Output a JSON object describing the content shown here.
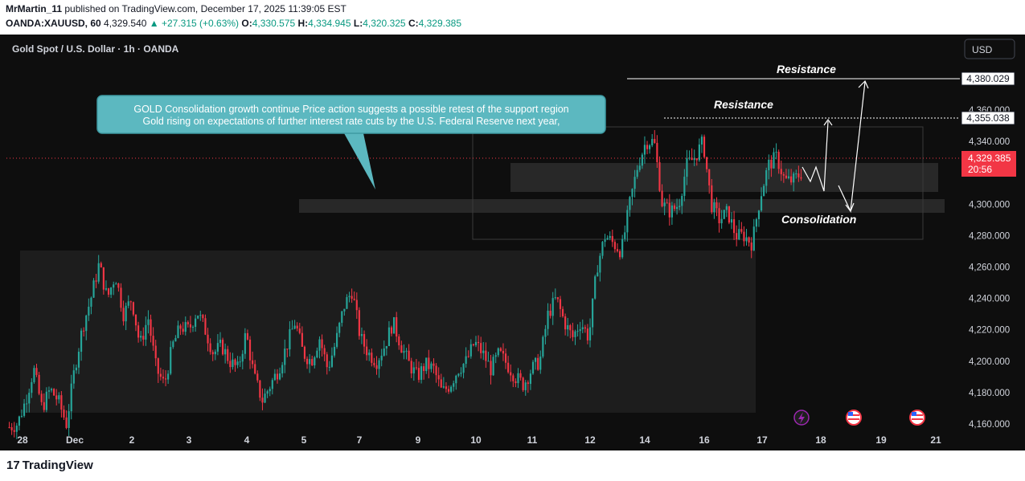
{
  "header": {
    "author": "MrMartin_11",
    "published": " published on TradingView.com, December 17, 2025 11:39:05 EST",
    "symbol": "OANDA:XAUUSD, 60",
    "last": "4,329.540",
    "change": "▲ +27.315 (+0.63%)",
    "o_label": "O:",
    "o_value": "4,330.575",
    "h_label": "H:",
    "h_value": "4,334.945",
    "l_label": "L:",
    "l_value": "4,320.325",
    "c_label": "C:",
    "c_value": "4,329.385"
  },
  "chart_title": "Gold Spot / U.S. Dollar · 1h · OANDA",
  "currency_button": "USD",
  "callout": {
    "line1": "GOLD Consolidation growth continue Price action suggests a possible retest of the support region",
    "line2": "Gold rising on expectations of further interest rate cuts by the U.S. Federal Reserve next year,"
  },
  "annotations": {
    "resistance_top": "Resistance",
    "resistance_mid": "Resistance",
    "consolidation": "Consolidation"
  },
  "price_labels": {
    "level_high": "4,380.029",
    "level_mid": "4,355.038",
    "current": "4,329.385",
    "countdown": "20:56"
  },
  "footer": {
    "brand": "TradingView"
  },
  "colors": {
    "background": "#0e0e0e",
    "bull": "#26a69a",
    "bear": "#f23645",
    "text": "#d1d4dc",
    "current_price": "#f23645"
  },
  "icons": [
    "flash-event-icon",
    "us-flag-icon",
    "us-flag-icon"
  ],
  "chart_data": {
    "type": "candlestick",
    "title": "Gold Spot / U.S. Dollar · 1h · OANDA",
    "y_ticks": [
      4160,
      4180,
      4200,
      4220,
      4240,
      4260,
      4280,
      4300,
      4340,
      4360
    ],
    "y_tick_labels": [
      "4,160.000",
      "4,180.000",
      "4,200.000",
      "4,220.000",
      "4,240.000",
      "4,260.000",
      "4,280.000",
      "4,300.000",
      "4,340.000",
      "4,360.000"
    ],
    "ylim": [
      4150,
      4395
    ],
    "x_tick_labels": [
      "28",
      "Dec",
      "2",
      "3",
      "4",
      "5",
      "7",
      "9",
      "10",
      "11",
      "12",
      "14",
      "16",
      "17",
      "18",
      "19",
      "21"
    ],
    "price_path": [
      [
        4158,
        4160
      ],
      [
        4175,
        4195
      ],
      [
        4170,
        4182
      ],
      [
        4175,
        4160
      ],
      [
        4195,
        4222
      ],
      [
        4240,
        4262
      ],
      [
        4240,
        4255
      ],
      [
        4230,
        4240
      ],
      [
        4210,
        4228
      ],
      [
        4195,
        4185
      ],
      [
        4210,
        4222
      ],
      [
        4220,
        4232
      ],
      [
        4220,
        4205
      ],
      [
        4210,
        4200
      ],
      [
        4195,
        4218
      ],
      [
        4190,
        4175
      ],
      [
        4185,
        4195
      ],
      [
        4210,
        4225
      ],
      [
        4205,
        4200
      ],
      [
        4215,
        4195
      ],
      [
        4212,
        4235
      ],
      [
        4245,
        4215
      ],
      [
        4205,
        4200
      ],
      [
        4210,
        4225
      ],
      [
        4210,
        4198
      ],
      [
        4190,
        4198
      ],
      [
        4195,
        4180
      ],
      [
        4185,
        4195
      ],
      [
        4200,
        4212
      ],
      [
        4205,
        4195
      ],
      [
        4205,
        4198
      ],
      [
        4190,
        4185
      ],
      [
        4195,
        4200
      ],
      [
        4230,
        4240
      ],
      [
        4225,
        4215
      ],
      [
        4225,
        4215
      ],
      [
        4260,
        4280
      ],
      [
        4275,
        4270
      ],
      [
        4300,
        4325
      ],
      [
        4340,
        4340
      ],
      [
        4300,
        4295
      ],
      [
        4300,
        4325
      ],
      [
        4330,
        4340
      ],
      [
        4300,
        4290
      ],
      [
        4295,
        4280
      ],
      [
        4280,
        4275
      ],
      [
        4305,
        4325
      ],
      [
        4330,
        4315
      ],
      [
        4315,
        4320
      ]
    ],
    "zones": [
      "accumulation range",
      "resistance zone",
      "support band",
      "consolidation box"
    ],
    "levels": [
      4380.029,
      4355.038
    ],
    "current_price": 4329.385
  }
}
